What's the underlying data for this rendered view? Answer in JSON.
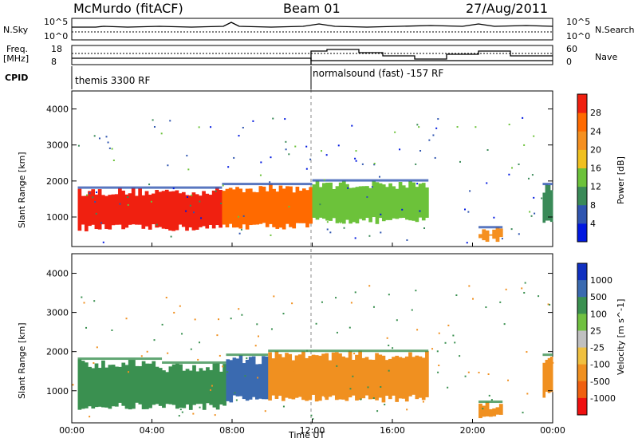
{
  "header": {
    "station": "McMurdo (fitACF)",
    "beam": "Beam 01",
    "date": "27/Aug/2011"
  },
  "top_panels": {
    "nsky_label": "N.Sky",
    "nsearch_label": "N.Search",
    "noise_ticks_left": [
      "10^5",
      "10^0"
    ],
    "noise_ticks_right": [
      "10^5",
      "10^0"
    ],
    "freq_label_1": "Freq.",
    "freq_label_2": "[MHz]",
    "freq_ticks": [
      "18",
      "8"
    ],
    "nave_label": "Nave",
    "nave_ticks": [
      "60",
      "0"
    ],
    "cpid_label": "CPID",
    "cpid_segments": [
      {
        "text": "themis 3300 RF",
        "start_hour": 0
      },
      {
        "text": "normalsound (fast) -157 RF",
        "start_hour": 12
      }
    ]
  },
  "chart_data": [
    {
      "type": "heatmap",
      "quantity": "Power",
      "ylabel": "Slant Range [km]",
      "xlabel": "Time UT",
      "xlim_hours": [
        0,
        24
      ],
      "ylim_km": [
        180,
        4500
      ],
      "yticks": [
        "1000",
        "2000",
        "3000",
        "4000"
      ],
      "xticks": [
        "00:00",
        "04:00",
        "08:00",
        "12:00",
        "16:00",
        "20:00",
        "00:00"
      ],
      "colorbar": {
        "label": "Power [dB]",
        "ticks": [
          "4",
          "8",
          "12",
          "16",
          "20",
          "24",
          "28"
        ],
        "colors": [
          "#0018e0",
          "#2f55b0",
          "#3a8a58",
          "#6cc23a",
          "#f0c020",
          "#f59020",
          "#ff6a00",
          "#f02010"
        ]
      },
      "echo_regions": [
        {
          "t0": 0.3,
          "t1": 7.5,
          "r0": 700,
          "r1": 1700,
          "value": 28
        },
        {
          "t0": 7.5,
          "t1": 12.0,
          "r0": 750,
          "r1": 1800,
          "value": 26
        },
        {
          "t0": 12.0,
          "t1": 17.8,
          "r0": 900,
          "r1": 1900,
          "value": 12
        },
        {
          "t0": 20.3,
          "t1": 21.5,
          "r0": 400,
          "r1": 600,
          "value": 20
        },
        {
          "t0": 23.5,
          "t1": 24.0,
          "r0": 900,
          "r1": 1800,
          "value": 10
        }
      ]
    },
    {
      "type": "heatmap",
      "quantity": "Velocity",
      "ylabel": "Slant Range [km]",
      "xlabel": "Time UT",
      "xlim_hours": [
        0,
        24
      ],
      "ylim_km": [
        180,
        4500
      ],
      "yticks": [
        "1000",
        "2000",
        "3000",
        "4000"
      ],
      "xticks": [
        "00:00",
        "04:00",
        "08:00",
        "12:00",
        "16:00",
        "20:00",
        "00:00"
      ],
      "colorbar": {
        "label": "Velocity [m s^-1]",
        "ticks": [
          "1000",
          "500",
          "100",
          "25",
          "-25",
          "-100",
          "-500",
          "-1000"
        ],
        "colors": [
          "#1030c0",
          "#3a6ab0",
          "#3a9050",
          "#70c040",
          "#c0c0c0",
          "#f0c040",
          "#f09020",
          "#f06010",
          "#f01010"
        ]
      },
      "echo_regions": [
        {
          "t0": 0.3,
          "t1": 4.5,
          "r0": 600,
          "r1": 1700,
          "value": 100
        },
        {
          "t0": 4.5,
          "t1": 7.7,
          "r0": 600,
          "r1": 1600,
          "value": 300
        },
        {
          "t0": 7.7,
          "t1": 9.8,
          "r0": 800,
          "r1": 1800,
          "value": 900
        },
        {
          "t0": 9.8,
          "t1": 17.8,
          "r0": 800,
          "r1": 1900,
          "value": -300
        },
        {
          "t0": 20.3,
          "t1": 21.5,
          "r0": 400,
          "r1": 600,
          "value": -300
        },
        {
          "t0": 23.5,
          "t1": 24.0,
          "r0": 900,
          "r1": 1800,
          "value": -300
        }
      ]
    }
  ]
}
